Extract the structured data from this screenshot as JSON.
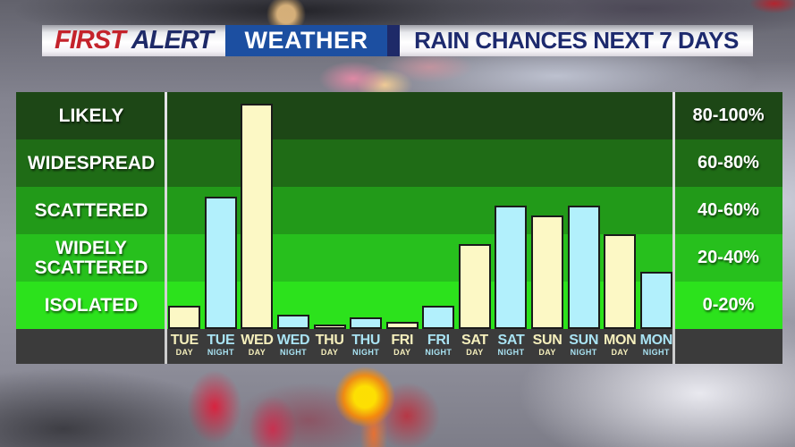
{
  "header": {
    "brand": {
      "first": "FIRST",
      "alert": "ALERT",
      "weather": "WEATHER"
    },
    "title": "RAIN CHANCES NEXT 7 DAYS"
  },
  "colors": {
    "brand_red": "#c4232b",
    "brand_navy": "#1e2a68",
    "weather_box_blue": "#1c4fa1",
    "title_navy": "#1d2a6e",
    "band_greens": [
      "#1d4716",
      "#1f6c16",
      "#229a19",
      "#27c01d",
      "#2ce21c"
    ],
    "axis_strip": "#3b3b3b",
    "bar_outline": "#1b1b1b",
    "day_label": "#f5efbc",
    "night_label": "#a9e3f3",
    "divider": "#cccccc"
  },
  "chart_data": {
    "type": "bar",
    "title": "RAIN CHANCES NEXT 7 DAYS",
    "ylim": [
      0,
      100
    ],
    "grid": "horizontal color bands",
    "legend": "none",
    "y_bands": [
      {
        "label": "LIKELY",
        "range": "80-100%"
      },
      {
        "label": "WIDESPREAD",
        "range": "60-80%"
      },
      {
        "label": "SCATTERED",
        "range": "40-60%"
      },
      {
        "label": "WIDELY SCATTERED",
        "range": "20-40%"
      },
      {
        "label": "ISOLATED",
        "range": "0-20%"
      }
    ],
    "categories": [
      {
        "day": "TUE",
        "period": "DAY"
      },
      {
        "day": "TUE",
        "period": "NIGHT"
      },
      {
        "day": "WED",
        "period": "DAY"
      },
      {
        "day": "WED",
        "period": "NIGHT"
      },
      {
        "day": "THU",
        "period": "DAY"
      },
      {
        "day": "THU",
        "period": "NIGHT"
      },
      {
        "day": "FRI",
        "period": "DAY"
      },
      {
        "day": "FRI",
        "period": "NIGHT"
      },
      {
        "day": "SAT",
        "period": "DAY"
      },
      {
        "day": "SAT",
        "period": "NIGHT"
      },
      {
        "day": "SUN",
        "period": "DAY"
      },
      {
        "day": "SUN",
        "period": "NIGHT"
      },
      {
        "day": "MON",
        "period": "DAY"
      },
      {
        "day": "MON",
        "period": "NIGHT"
      }
    ],
    "values": [
      10,
      56,
      95,
      6,
      2,
      5,
      3,
      10,
      36,
      52,
      48,
      52,
      40,
      24
    ],
    "series_colors": {
      "DAY": "#fcf8c5",
      "NIGHT": "#b2f0fc"
    }
  }
}
